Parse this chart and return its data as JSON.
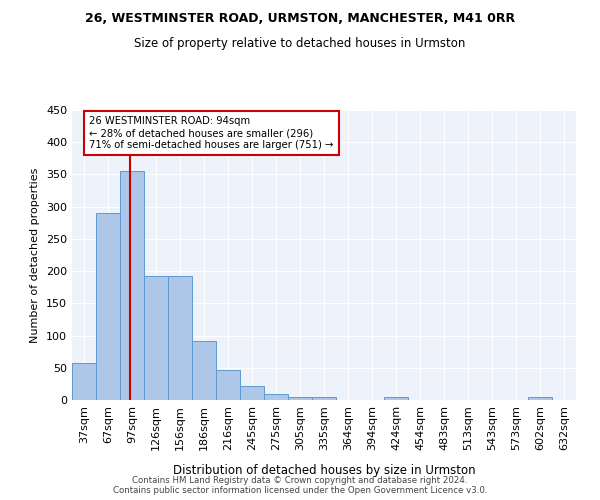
{
  "title1": "26, WESTMINSTER ROAD, URMSTON, MANCHESTER, M41 0RR",
  "title2": "Size of property relative to detached houses in Urmston",
  "xlabel": "Distribution of detached houses by size in Urmston",
  "ylabel": "Number of detached properties",
  "bar_labels": [
    "37sqm",
    "67sqm",
    "97sqm",
    "126sqm",
    "156sqm",
    "186sqm",
    "216sqm",
    "245sqm",
    "275sqm",
    "305sqm",
    "335sqm",
    "364sqm",
    "394sqm",
    "424sqm",
    "454sqm",
    "483sqm",
    "513sqm",
    "543sqm",
    "573sqm",
    "602sqm",
    "632sqm"
  ],
  "bar_values": [
    57,
    290,
    355,
    193,
    192,
    91,
    46,
    22,
    9,
    5,
    5,
    0,
    0,
    5,
    0,
    0,
    0,
    0,
    0,
    5,
    0
  ],
  "bar_color": "#aec6e8",
  "bar_edge_color": "#5b9bd5",
  "bg_color": "#eef2fb",
  "grid_color": "#ffffff",
  "red_line_x": 1.9,
  "red_line_color": "#cc0000",
  "annotation_line1": "26 WESTMINSTER ROAD: 94sqm",
  "annotation_line2": "← 28% of detached houses are smaller (296)",
  "annotation_line3": "71% of semi-detached houses are larger (751) →",
  "annotation_box_color": "#ffffff",
  "annotation_box_edge": "#cc0000",
  "ylim": [
    0,
    450
  ],
  "yticks": [
    0,
    50,
    100,
    150,
    200,
    250,
    300,
    350,
    400,
    450
  ],
  "footnote1": "Contains HM Land Registry data © Crown copyright and database right 2024.",
  "footnote2": "Contains public sector information licensed under the Open Government Licence v3.0."
}
